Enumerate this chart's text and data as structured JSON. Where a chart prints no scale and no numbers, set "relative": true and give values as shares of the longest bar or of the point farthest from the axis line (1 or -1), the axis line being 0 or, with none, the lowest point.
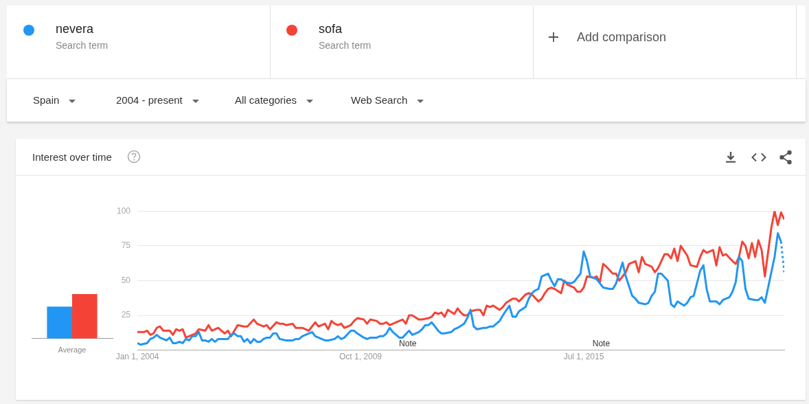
{
  "chart_data": [
    {
      "type": "bar",
      "relative": true,
      "categories": [
        "Average"
      ],
      "series": [
        {
          "color": "#2196f3",
          "values": [
            0.72
          ]
        },
        {
          "color": "#f44336",
          "values": [
            1
          ]
        }
      ]
    },
    {
      "type": "line",
      "title": "Interest over time",
      "legend": "top",
      "grid": "y",
      "xlim": [
        "2004-01-01",
        "2020-09-01"
      ],
      "xticks": [
        {
          "value": "2004-01-01",
          "label": "Jan 1, 2004"
        },
        {
          "value": "2009-10-01",
          "label": "Oct 1, 2009"
        },
        {
          "value": "2015-07-01",
          "label": "Jul 1, 2015"
        }
      ],
      "ylim": [
        0,
        100
      ],
      "yticks": [
        25,
        50,
        75,
        100
      ],
      "series": [
        {
          "name": "nevera",
          "color": "#2196f3",
          "x": [
            "2004-01",
            "2004-02",
            "2004-04",
            "2004-05",
            "2004-06",
            "2004-07",
            "2004-08",
            "2004-09",
            "2004-10",
            "2004-11",
            "2004-12",
            "2005-01",
            "2005-02",
            "2005-03",
            "2005-04",
            "2005-05",
            "2005-06",
            "2005-07",
            "2005-08",
            "2005-09",
            "2005-10",
            "2005-11",
            "2005-12",
            "2006-01",
            "2006-02",
            "2006-05",
            "2006-06",
            "2006-07",
            "2006-08",
            "2006-09",
            "2006-10",
            "2006-11",
            "2006-12",
            "2007-01",
            "2007-02",
            "2007-03",
            "2007-04",
            "2007-05",
            "2007-06",
            "2007-07",
            "2007-08",
            "2007-09",
            "2007-11",
            "2008-01",
            "2008-02",
            "2008-03",
            "2008-04",
            "2008-06",
            "2008-07",
            "2008-08",
            "2008-09",
            "2008-11",
            "2008-12",
            "2009-02",
            "2009-03",
            "2009-04",
            "2009-05",
            "2009-07",
            "2009-08",
            "2009-09",
            "2009-11",
            "2009-12",
            "2010-01",
            "2010-03",
            "2010-04",
            "2010-05",
            "2010-06",
            "2010-07",
            "2010-08",
            "2010-10",
            "2010-11",
            "2011-01",
            "2011-02",
            "2011-04",
            "2011-05",
            "2011-06",
            "2011-07",
            "2011-08",
            "2011-10",
            "2011-11",
            "2011-12",
            "2012-02",
            "2012-03",
            "2012-04",
            "2012-06",
            "2012-07",
            "2012-08",
            "2012-09",
            "2012-10",
            "2012-12",
            "2013-01",
            "2013-02",
            "2013-03",
            "2013-05",
            "2013-06",
            "2013-08",
            "2013-09",
            "2013-10",
            "2013-11",
            "2014-01",
            "2014-02",
            "2014-03",
            "2014-04",
            "2014-05",
            "2014-06",
            "2014-08",
            "2014-09",
            "2014-10",
            "2014-11",
            "2014-12",
            "2015-01",
            "2015-03",
            "2015-04",
            "2015-06",
            "2015-07",
            "2015-08",
            "2015-09",
            "2015-11",
            "2015-12",
            "2016-01",
            "2016-03",
            "2016-04",
            "2016-05",
            "2016-07",
            "2016-08",
            "2016-10",
            "2016-11",
            "2016-12",
            "2017-02",
            "2017-03",
            "2017-04",
            "2017-05",
            "2017-06",
            "2017-07",
            "2017-09",
            "2017-10",
            "2017-11",
            "2017-12",
            "2018-02",
            "2018-03",
            "2018-04",
            "2018-05",
            "2018-07",
            "2018-08",
            "2018-09",
            "2018-10",
            "2018-12",
            "2019-01",
            "2019-02",
            "2019-04",
            "2019-05",
            "2019-06",
            "2019-07",
            "2019-08",
            "2019-09",
            "2019-10",
            "2019-12",
            "2020-01",
            "2020-02",
            "2020-03",
            "2020-05",
            "2020-06",
            "2020-07",
            "2020-08"
          ],
          "values": [
            5,
            4,
            5,
            8,
            9,
            11,
            9,
            8,
            7,
            9,
            5,
            5,
            6,
            5,
            8,
            7,
            10,
            10,
            13,
            7,
            7,
            6,
            8,
            6,
            8,
            8,
            11,
            12,
            10,
            10,
            6,
            8,
            5,
            8,
            6,
            6,
            8,
            9,
            9,
            12,
            12,
            8,
            7,
            7,
            8,
            8,
            10,
            12,
            13,
            10,
            9,
            7,
            7,
            8,
            10,
            8,
            9,
            14,
            14,
            12,
            9,
            8,
            9,
            9,
            10,
            10,
            12,
            16,
            13,
            9,
            9,
            14,
            11,
            13,
            15,
            18,
            18,
            20,
            14,
            12,
            12,
            13,
            15,
            16,
            19,
            23,
            29,
            17,
            15,
            16,
            16,
            17,
            17,
            21,
            25,
            32,
            24,
            24,
            28,
            31,
            37,
            41,
            43,
            44,
            53,
            55,
            50,
            46,
            51,
            51,
            49,
            48,
            49,
            55,
            71,
            64,
            53,
            51,
            48,
            45,
            44,
            44,
            48,
            63,
            53,
            39,
            37,
            34,
            33,
            34,
            39,
            42,
            55,
            55,
            50,
            33,
            31,
            35,
            32,
            34,
            38,
            39,
            57,
            61,
            44,
            35,
            35,
            33,
            36,
            38,
            42,
            49,
            67,
            64,
            44,
            37,
            36,
            36,
            38,
            34,
            56,
            67,
            84,
            78
          ]
        },
        {
          "name": "sofa",
          "color": "#f44336",
          "x": [
            "2004-01",
            "2004-03",
            "2004-04",
            "2004-05",
            "2004-06",
            "2004-07",
            "2004-08",
            "2004-09",
            "2004-11",
            "2004-12",
            "2005-01",
            "2005-02",
            "2005-03",
            "2005-04",
            "2005-06",
            "2005-07",
            "2005-08",
            "2005-10",
            "2005-11",
            "2005-12",
            "2006-02",
            "2006-04",
            "2006-05",
            "2006-06",
            "2006-08",
            "2006-10",
            "2006-11",
            "2007-01",
            "2007-02",
            "2007-04",
            "2007-05",
            "2007-06",
            "2007-08",
            "2007-09",
            "2007-10",
            "2007-11",
            "2008-01",
            "2008-02",
            "2008-04",
            "2008-06",
            "2008-08",
            "2008-09",
            "2008-11",
            "2008-12",
            "2009-01",
            "2009-02",
            "2009-03",
            "2009-04",
            "2009-05",
            "2009-07",
            "2009-08",
            "2009-09",
            "2009-11",
            "2009-12",
            "2010-01",
            "2010-03",
            "2010-04",
            "2010-05",
            "2010-06",
            "2010-07",
            "2010-09",
            "2010-10",
            "2010-11",
            "2010-12",
            "2011-01",
            "2011-02",
            "2011-04",
            "2011-05",
            "2011-07",
            "2011-08",
            "2011-09",
            "2011-10",
            "2011-11",
            "2011-12",
            "2012-01",
            "2012-03",
            "2012-04",
            "2012-05",
            "2012-06",
            "2012-07",
            "2012-08",
            "2012-10",
            "2012-11",
            "2012-12",
            "2013-01",
            "2013-02",
            "2013-03",
            "2013-05",
            "2013-06",
            "2013-07",
            "2013-09",
            "2013-10",
            "2013-11",
            "2014-01",
            "2014-02",
            "2014-03",
            "2014-05",
            "2014-06",
            "2014-07",
            "2014-08",
            "2014-09",
            "2014-10",
            "2014-12",
            "2015-01",
            "2015-02",
            "2015-04",
            "2015-05",
            "2015-06",
            "2015-07",
            "2015-08",
            "2015-10",
            "2015-11",
            "2015-12",
            "2016-01",
            "2016-02",
            "2016-04",
            "2016-05",
            "2016-06",
            "2016-08",
            "2016-09",
            "2016-11",
            "2016-12",
            "2017-01",
            "2017-02",
            "2017-04",
            "2017-05",
            "2017-06",
            "2017-08",
            "2017-09",
            "2017-10",
            "2017-11",
            "2017-12",
            "2018-01",
            "2018-03",
            "2018-04",
            "2018-06",
            "2018-07",
            "2018-08",
            "2018-09",
            "2018-11",
            "2018-12",
            "2019-01",
            "2019-02",
            "2019-03",
            "2019-05",
            "2019-06",
            "2019-07",
            "2019-08",
            "2019-09",
            "2019-10",
            "2019-11",
            "2019-12",
            "2020-01",
            "2020-02",
            "2020-03",
            "2020-05",
            "2020-06",
            "2020-07",
            "2020-08",
            "2020-09"
          ],
          "values": [
            13,
            13,
            14,
            11,
            12,
            16,
            17,
            14,
            14,
            11,
            15,
            14,
            15,
            9,
            11,
            12,
            15,
            14,
            18,
            14,
            16,
            12,
            14,
            10,
            18,
            17,
            17,
            22,
            19,
            17,
            18,
            15,
            20,
            19,
            19,
            18,
            19,
            16,
            16,
            14,
            20,
            17,
            19,
            15,
            21,
            19,
            18,
            19,
            16,
            18,
            21,
            23,
            22,
            19,
            22,
            21,
            19,
            19,
            20,
            18,
            20,
            21,
            22,
            19,
            25,
            25,
            22,
            22,
            23,
            24,
            27,
            26,
            27,
            24,
            29,
            26,
            30,
            27,
            25,
            25,
            28,
            29,
            29,
            25,
            32,
            31,
            32,
            29,
            31,
            34,
            37,
            37,
            35,
            40,
            41,
            40,
            35,
            37,
            41,
            44,
            45,
            44,
            41,
            50,
            47,
            45,
            42,
            42,
            45,
            53,
            52,
            53,
            49,
            62,
            60,
            55,
            55,
            50,
            56,
            62,
            64,
            56,
            67,
            62,
            60,
            56,
            59,
            69,
            69,
            66,
            73,
            64,
            75,
            68,
            61,
            60,
            67,
            72,
            70,
            72,
            61,
            74,
            68,
            69,
            64,
            62,
            67,
            78,
            75,
            66,
            77,
            67,
            79,
            72,
            53,
            88,
            100,
            90,
            99,
            94
          ]
        },
        {
          "color": "#2196f3",
          "line_style": "dotted",
          "x": [
            "2020-08",
            "2020-09"
          ],
          "values": [
            78,
            56
          ]
        }
      ],
      "annotations": [
        "Search term",
        "Search term",
        "Add comparison",
        "Spain",
        "2004 - present",
        "All categories",
        "Web Search",
        "Note",
        "Note"
      ]
    }
  ]
}
